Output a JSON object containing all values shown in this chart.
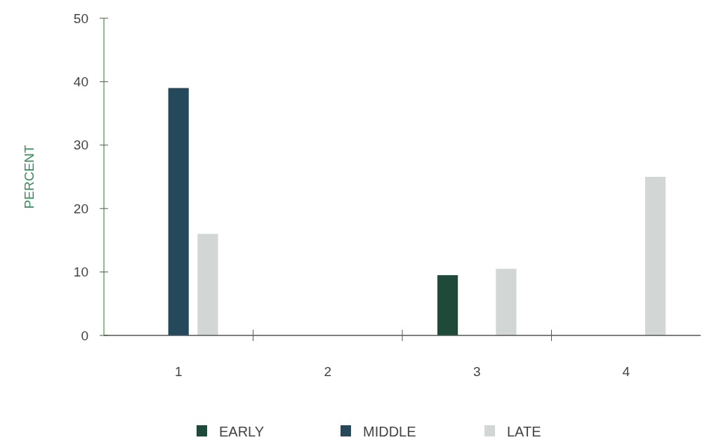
{
  "chart_data": {
    "type": "bar",
    "ylabel": "PERCENT",
    "categories": [
      "1",
      "2",
      "3",
      "4"
    ],
    "series": [
      {
        "name": "EARLY",
        "color": "#1f4a3a",
        "values": [
          0,
          0,
          9.5,
          0
        ]
      },
      {
        "name": "MIDDLE",
        "color": "#25485a",
        "values": [
          39,
          0,
          0,
          0
        ]
      },
      {
        "name": "LATE",
        "color": "#d2d6d4",
        "values": [
          16,
          0,
          10.5,
          25
        ]
      }
    ],
    "ylim": [
      0,
      50
    ],
    "yticks": [
      0,
      10,
      20,
      30,
      40,
      50
    ],
    "legend": "bottom"
  }
}
